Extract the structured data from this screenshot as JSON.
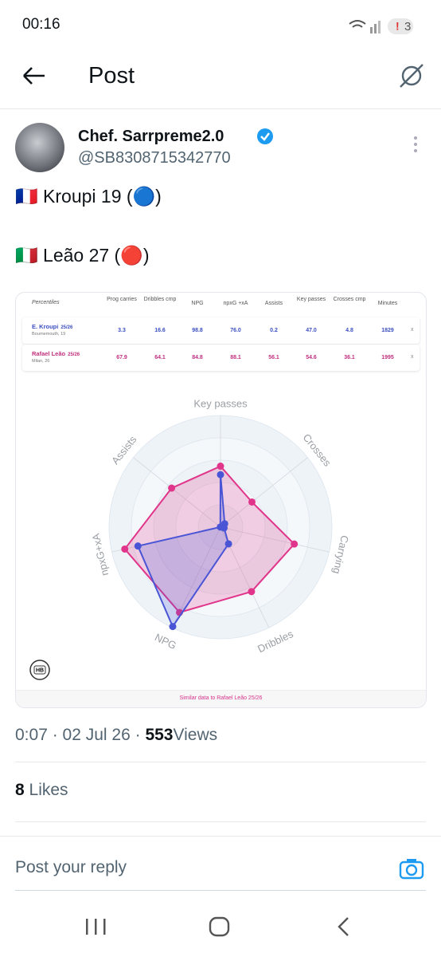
{
  "status_bar": {
    "time": "00:16",
    "badge": "3"
  },
  "header": {
    "title": "Post"
  },
  "post": {
    "author": "Chef. Sarrpreme2.0",
    "handle": "@SB8308715342770",
    "lines": [
      "🇫🇷 Kroupi 19 (🔵)",
      "🇮🇹 Leão 27 (🔴)"
    ],
    "table": {
      "header": [
        "Percentiles",
        "Prog carries",
        "Dribbles cmp",
        "NPG",
        "npxG +xA",
        "Assists",
        "Key passes",
        "Crosses cmp",
        "Minutes"
      ],
      "rows": [
        {
          "name": "E. Kroupi",
          "season": "25/26",
          "club": "Bournemouth, 19",
          "values": [
            "3.3",
            "16.6",
            "98.8",
            "76.0",
            "0.2",
            "47.0",
            "4.8",
            "1829"
          ],
          "remove": "x"
        },
        {
          "name": "Rafael Leão",
          "season": "25/26",
          "club": "Milan, 26",
          "values": [
            "67.9",
            "64.1",
            "84.8",
            "88.1",
            "56.1",
            "54.6",
            "36.1",
            "1995"
          ],
          "remove": "x"
        }
      ]
    },
    "footer": "Similar data to Rafael Leão 25/26",
    "meta": {
      "time_date": "0:07 · 02 Jul 26 ·",
      "views": 553,
      "views_label": "Views"
    }
  },
  "likes": {
    "count": 8,
    "label": "Likes"
  },
  "reply": {
    "placeholder": "Post your reply"
  },
  "chart_data": {
    "type": "radar",
    "categories": [
      "Key passes",
      "Crosses",
      "Carrying",
      "Dribbles",
      "NPG",
      "npxG+xA",
      "Assists"
    ],
    "rlim": [
      0,
      100
    ],
    "series": [
      {
        "color": "#e0358a",
        "values": [
          54.6,
          36.1,
          67.9,
          64.1,
          84.8,
          88.1,
          56.1
        ]
      },
      {
        "color": "#4a55d6",
        "values": [
          47,
          4.8,
          3.3,
          16.6,
          98.8,
          76,
          0.2
        ]
      }
    ]
  }
}
